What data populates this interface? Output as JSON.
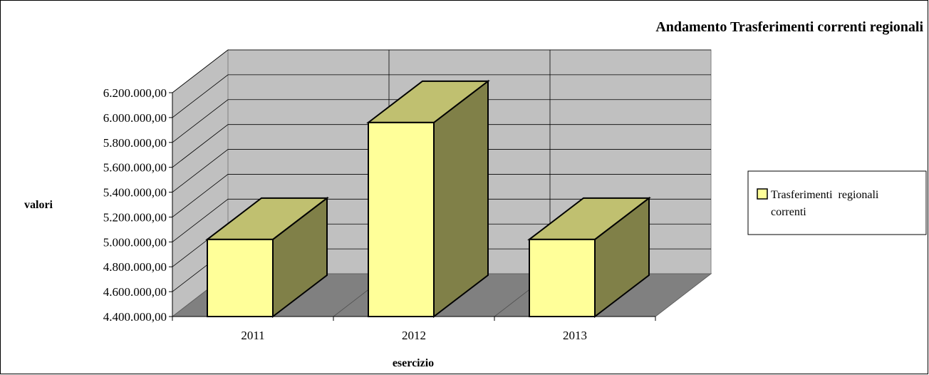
{
  "chart_data": {
    "type": "bar",
    "title": "Andamento Trasferimenti correnti regionali",
    "xlabel": "esercizio",
    "ylabel": "valori",
    "categories": [
      "2011",
      "2012",
      "2013"
    ],
    "series": [
      {
        "name": "Trasferimenti regionali correnti",
        "values": [
          5020000,
          5960000,
          5020000
        ]
      }
    ],
    "ylim": [
      4400000,
      6200000
    ],
    "yticks": [
      "4.400.000,00",
      "4.600.000,00",
      "4.800.000,00",
      "5.000.000,00",
      "5.200.000,00",
      "5.400.000,00",
      "5.600.000,00",
      "5.800.000,00",
      "6.000.000,00",
      "6.200.000,00"
    ],
    "grid": true,
    "three_d": true,
    "legend": {
      "placement": "right",
      "lines": [
        "Trasferimenti  regionali",
        "correnti"
      ]
    },
    "colors": {
      "bar_front": "#ffff99",
      "bar_top": "#c0c070",
      "bar_side": "#808048",
      "wall": "#c0c0c0",
      "floor": "#808080",
      "gridline": "#000000"
    }
  }
}
